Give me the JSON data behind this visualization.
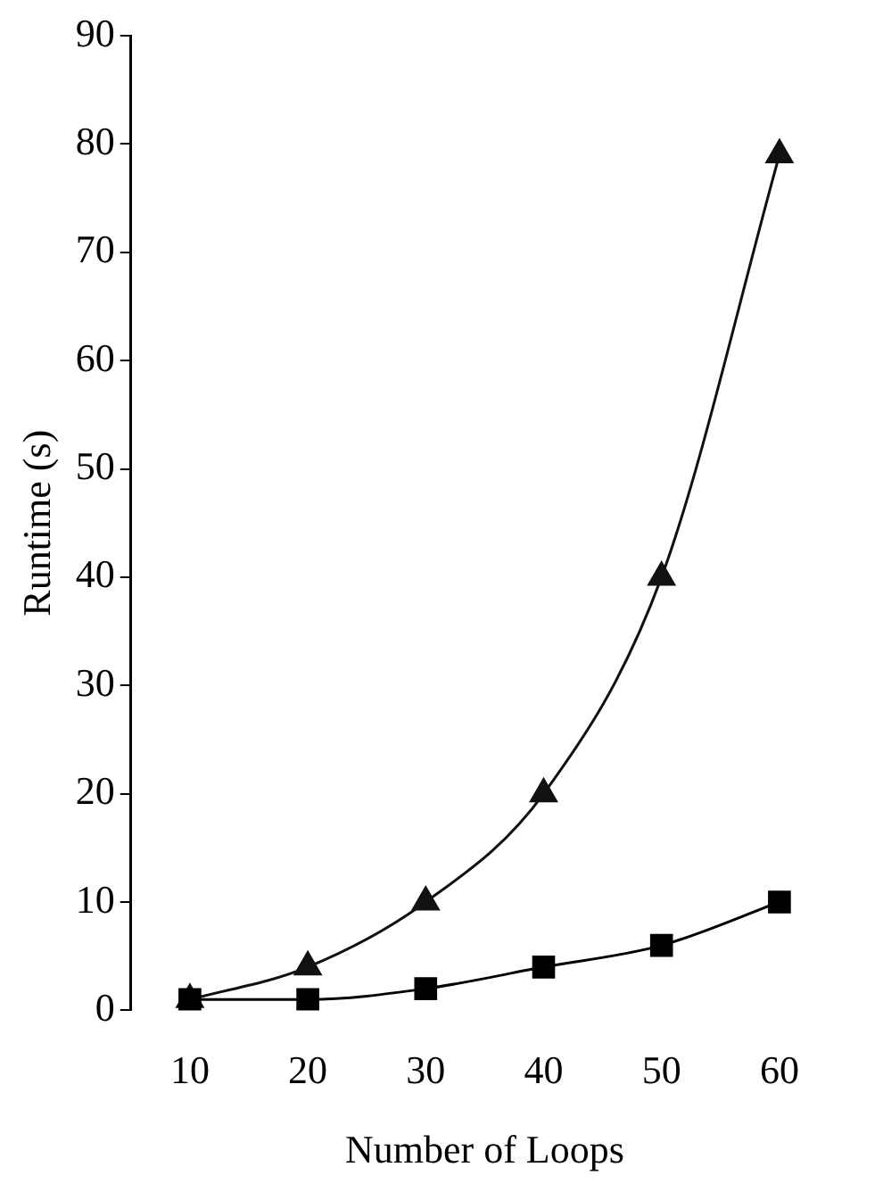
{
  "chart_data": {
    "type": "line",
    "xlabel": "Number of Loops",
    "ylabel": "Runtime (s)",
    "categories": [
      "10",
      "20",
      "30",
      "40",
      "50",
      "60"
    ],
    "series": [
      {
        "color": "#000000",
        "marker": "square",
        "values": [
          1,
          1,
          2,
          4,
          6,
          10
        ]
      },
      {
        "color": "#111111",
        "marker": "triangle",
        "values": [
          1,
          4,
          10,
          20,
          40,
          79
        ]
      }
    ],
    "ylim": [
      0,
      90
    ],
    "yticks": [
      0,
      10,
      20,
      30,
      40,
      50,
      60,
      70,
      80,
      90
    ],
    "grid": false,
    "legend": false,
    "line_style": "solid"
  }
}
